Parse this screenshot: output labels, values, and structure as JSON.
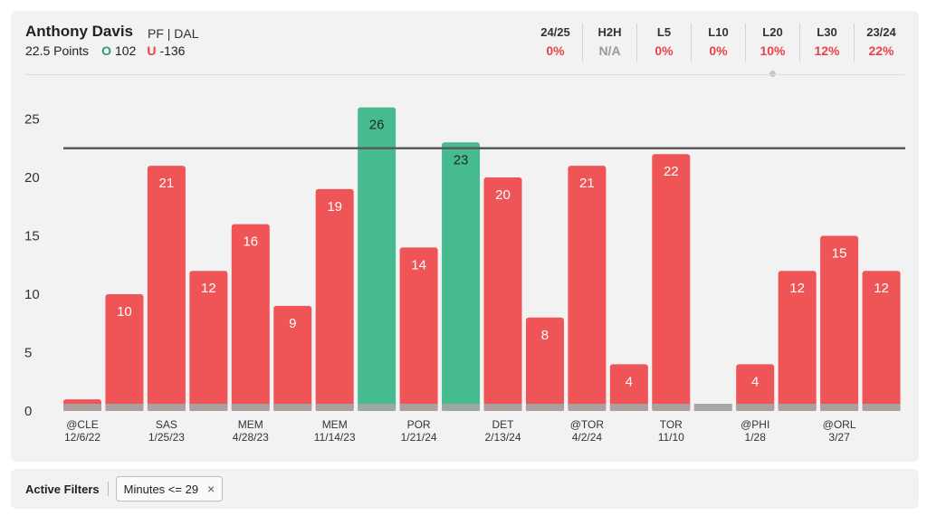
{
  "header": {
    "player_name": "Anthony Davis",
    "position_team": "PF | DAL",
    "prop_line": "22.5 Points",
    "over_marker": "O",
    "over_odds": "102",
    "under_marker": "U",
    "under_odds": "-136"
  },
  "stats": [
    {
      "label": "24/25",
      "value": "0%"
    },
    {
      "label": "H2H",
      "value": "N/A"
    },
    {
      "label": "L5",
      "value": "0%"
    },
    {
      "label": "L10",
      "value": "0%"
    },
    {
      "label": "L20",
      "value": "10%"
    },
    {
      "label": "L30",
      "value": "12%"
    },
    {
      "label": "23/24",
      "value": "22%"
    }
  ],
  "filters": {
    "title": "Active Filters",
    "chip_label": "Minutes <= 29",
    "chip_remove_icon": "×"
  },
  "colors": {
    "over": "#45bb8f",
    "under": "#ef5457",
    "minutes_strip": "#a6a6a6",
    "line": "#5a5a5a"
  },
  "chart_data": {
    "type": "bar",
    "line_value": 22.5,
    "ylim": [
      0,
      27
    ],
    "yticks": [
      0,
      5,
      10,
      15,
      20,
      25
    ],
    "values": [
      1,
      10,
      21,
      12,
      16,
      9,
      19,
      26,
      14,
      23,
      20,
      8,
      21,
      4,
      22,
      0,
      4,
      12,
      15,
      12
    ],
    "value_labels": [
      "",
      "10",
      "21",
      "12",
      "16",
      "9",
      "19",
      "26",
      "14",
      "23",
      "20",
      "8",
      "21",
      "4",
      "22",
      "",
      "4",
      "12",
      "15",
      "12"
    ],
    "x_labels": [
      {
        "index": 0,
        "opponent": "@CLE",
        "date": "12/6/22"
      },
      {
        "index": 2,
        "opponent": "SAS",
        "date": "1/25/23"
      },
      {
        "index": 4,
        "opponent": "MEM",
        "date": "4/28/23"
      },
      {
        "index": 6,
        "opponent": "MEM",
        "date": "11/14/23"
      },
      {
        "index": 8,
        "opponent": "POR",
        "date": "1/21/24"
      },
      {
        "index": 10,
        "opponent": "DET",
        "date": "2/13/24"
      },
      {
        "index": 12,
        "opponent": "@TOR",
        "date": "4/2/24"
      },
      {
        "index": 14,
        "opponent": "TOR",
        "date": "11/10"
      },
      {
        "index": 16,
        "opponent": "@PHI",
        "date": "1/28"
      },
      {
        "index": 18,
        "opponent": "@ORL",
        "date": "3/27"
      }
    ]
  }
}
